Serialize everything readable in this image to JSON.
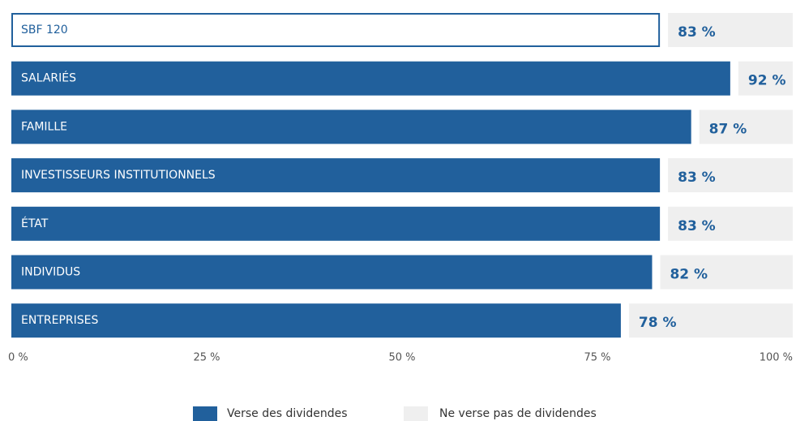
{
  "chart_data": {
    "type": "stacked_barh",
    "categories": [
      "SBF 120",
      "SALARIÉS",
      "FAMILLE",
      "INVESTISSEURS INSTITUTIONNELS",
      "ÉTAT",
      "INDIVIDUS",
      "ENTREPRISES"
    ],
    "series": [
      {
        "name": "Verse des dividendes",
        "color": "#21609c",
        "values": [
          83,
          92,
          87,
          83,
          83,
          82,
          78
        ],
        "value_labels": [
          "83 %",
          "92 %",
          "87 %",
          "83 %",
          "83 %",
          "82 %",
          "78 %"
        ]
      },
      {
        "name": "Ne verse pas de dividendes",
        "color": "#efefef",
        "values": [
          17,
          8,
          13,
          17,
          17,
          18,
          22
        ]
      }
    ],
    "outlined_categories": [
      0
    ],
    "xlim": [
      0,
      100
    ],
    "xticks": [
      {
        "value": 0,
        "label": "0 %"
      },
      {
        "value": 25,
        "label": "25 %"
      },
      {
        "value": 50,
        "label": "50 %"
      },
      {
        "value": 75,
        "label": "75 %"
      },
      {
        "value": 100,
        "label": "100 %"
      }
    ],
    "legend": "bottom"
  }
}
